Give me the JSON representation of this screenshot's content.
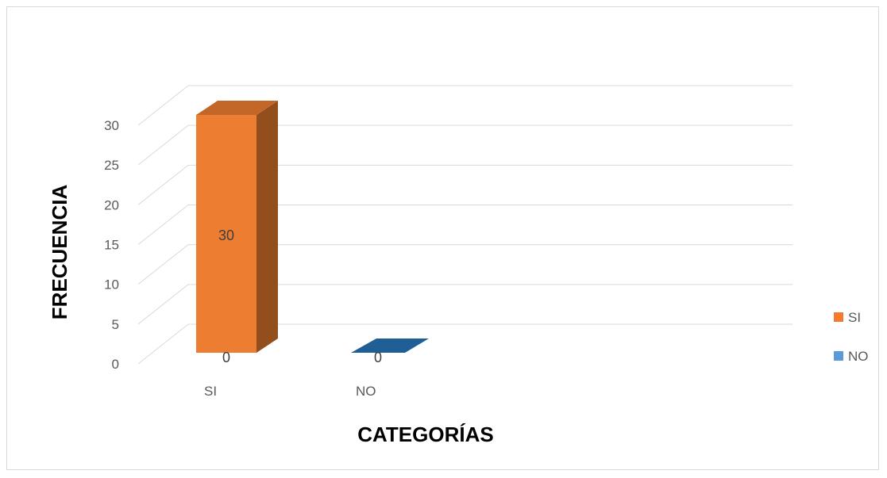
{
  "chart_data": {
    "type": "bar",
    "style": "3d-clustered-column",
    "categories": [
      "SI",
      "NO"
    ],
    "series": [
      {
        "name": "SI",
        "color": "#ed7d31",
        "values": [
          30,
          0
        ]
      },
      {
        "name": "NO",
        "color": "#5b9bd5",
        "values": [
          0,
          0
        ]
      }
    ],
    "data_labels": [
      "30",
      "0",
      "0"
    ],
    "xlabel": "CATEGORÍAS",
    "ylabel": "FRECUENCIA",
    "ylim": [
      0,
      30
    ],
    "yticks": [
      "0",
      "5",
      "10",
      "15",
      "20",
      "25",
      "30"
    ],
    "grid": true,
    "legend_position": "right"
  }
}
